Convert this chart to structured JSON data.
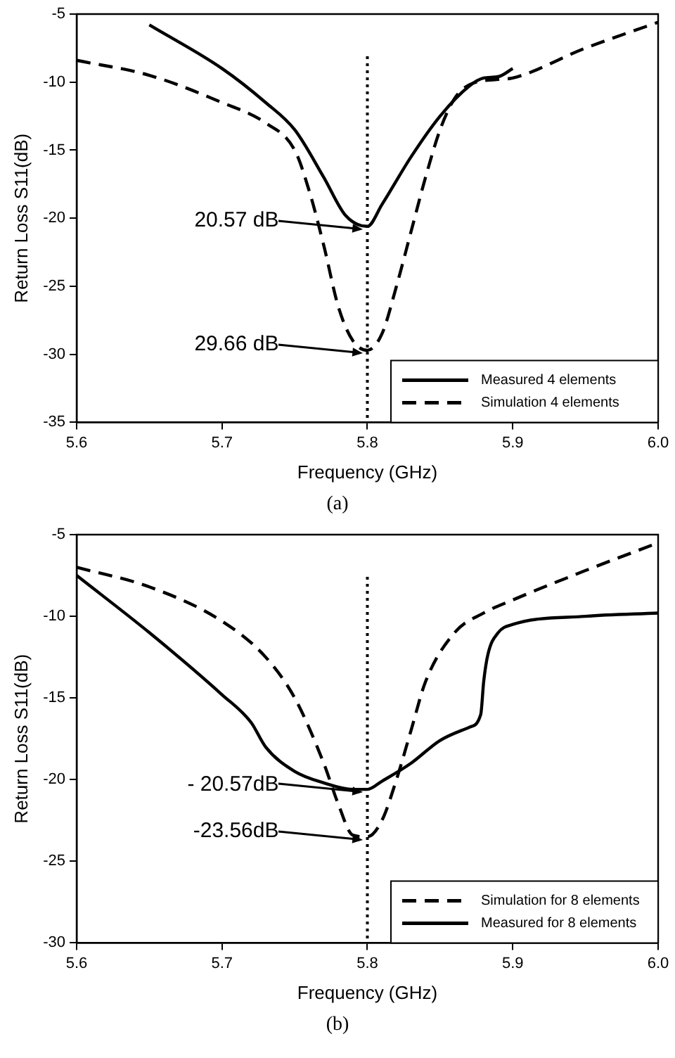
{
  "chart_data": [
    {
      "type": "line",
      "xlabel": "Frequency (GHz)",
      "ylabel": "Return Loss S11(dB)",
      "xlim": [
        5.6,
        6.0
      ],
      "ylim": [
        -35,
        -5
      ],
      "xticks": [
        5.6,
        5.7,
        5.8,
        5.9,
        {
          "value": 6.0,
          "label": "6.0"
        }
      ],
      "yticks": [
        -35,
        -30,
        -25,
        -20,
        -15,
        -10,
        -5
      ],
      "grid": false,
      "legend": "bottom right",
      "marker": "none",
      "series": [
        {
          "name": "Measured 4 elements",
          "color": "#000000",
          "line_style": "solid",
          "x": [
            5.65,
            5.7,
            5.73,
            5.75,
            5.77,
            5.785,
            5.8,
            5.81,
            5.83,
            5.85,
            5.87,
            5.88,
            5.89,
            5.9
          ],
          "values": [
            -5.8,
            -9,
            -11.5,
            -13.5,
            -17,
            -19.8,
            -20.6,
            -19,
            -15.5,
            -12.5,
            -10.3,
            -9.7,
            -9.6,
            -9
          ]
        },
        {
          "name": "Simulation 4 elements",
          "color": "#000000",
          "line_style": "dashed",
          "x": [
            5.6,
            5.65,
            5.7,
            5.73,
            5.75,
            5.76,
            5.77,
            5.78,
            5.79,
            5.8,
            5.81,
            5.82,
            5.83,
            5.84,
            5.85,
            5.86,
            5.87,
            5.89,
            5.9,
            5.95,
            6.0
          ],
          "values": [
            -8.4,
            -9.5,
            -11.5,
            -13,
            -15,
            -18,
            -22,
            -26.5,
            -29,
            -29.7,
            -28.5,
            -25,
            -21,
            -17,
            -13.5,
            -11.2,
            -10.2,
            -9.8,
            -9.7,
            -7.5,
            -5.6
          ]
        }
      ],
      "ref_lines": [
        {
          "axis": "x",
          "value": 5.8,
          "color": "#000000",
          "line_style": "dotted"
        }
      ],
      "annotations": [
        "20.57 dB",
        "29.66 dB",
        "(a)"
      ]
    },
    {
      "type": "line",
      "xlabel": "Frequency (GHz)",
      "ylabel": "Return Loss S11(dB)",
      "xlim": [
        5.6,
        6.0
      ],
      "ylim": [
        -30,
        -5
      ],
      "xticks": [
        5.6,
        5.7,
        5.8,
        5.9,
        {
          "value": 6.0,
          "label": "6.0"
        }
      ],
      "yticks": [
        -30,
        -25,
        -20,
        -15,
        -10,
        -5
      ],
      "grid": false,
      "legend": "bottom right",
      "marker": "none",
      "series": [
        {
          "name": "Simulation for 8 elements",
          "color": "#000000",
          "line_style": "dashed",
          "x": [
            5.6,
            5.65,
            5.7,
            5.73,
            5.75,
            5.77,
            5.78,
            5.79,
            5.8,
            5.81,
            5.82,
            5.83,
            5.84,
            5.86,
            5.88,
            5.9,
            5.95,
            6.0
          ],
          "values": [
            -7,
            -8.2,
            -10.3,
            -12.5,
            -15,
            -19,
            -21.5,
            -23.4,
            -23.5,
            -22.5,
            -20,
            -17,
            -14,
            -11,
            -9.8,
            -9,
            -7.2,
            -5.5
          ]
        },
        {
          "name": "Measured for 8 elements",
          "color": "#000000",
          "line_style": "solid",
          "x": [
            5.6,
            5.65,
            5.7,
            5.72,
            5.73,
            5.75,
            5.77,
            5.79,
            5.8,
            5.81,
            5.83,
            5.85,
            5.87,
            5.878,
            5.88,
            5.883,
            5.89,
            5.9,
            5.95,
            6.0
          ],
          "values": [
            -7.5,
            -11,
            -14.8,
            -16.5,
            -18,
            -19.5,
            -20.2,
            -20.6,
            -20.6,
            -20.1,
            -19,
            -17.6,
            -16.8,
            -16,
            -14,
            -12.3,
            -11,
            -10.5,
            -10,
            -9.8
          ]
        }
      ],
      "ref_lines": [
        {
          "axis": "x",
          "value": 5.8,
          "color": "#000000",
          "line_style": "dotted"
        }
      ],
      "annotations": [
        "- 20.57dB",
        "-23.56dB",
        "(b)"
      ]
    }
  ]
}
